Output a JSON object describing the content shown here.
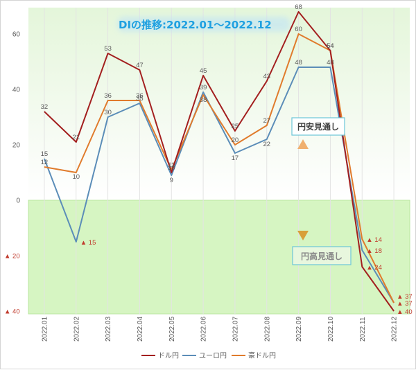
{
  "chart_data": {
    "type": "line",
    "title": "DIの推移:2022.01～2022.12",
    "categories": [
      "2022.01",
      "2022.02",
      "2022.03",
      "2022.04",
      "2022.05",
      "2022.06",
      "2022.07",
      "2022.08",
      "2022.09",
      "2022.10",
      "2022.11",
      "2022.12"
    ],
    "ylim": [
      -40,
      70
    ],
    "yticks": [
      {
        "value": 60,
        "label": "60"
      },
      {
        "value": 40,
        "label": "40"
      },
      {
        "value": 20,
        "label": "20"
      },
      {
        "value": 0,
        "label": "0"
      },
      {
        "value": -20,
        "label": "▲ 20"
      },
      {
        "value": -40,
        "label": "▲ 40"
      }
    ],
    "series": [
      {
        "name": "ドル円",
        "color": "#a31f1f",
        "values": [
          32,
          21,
          53,
          47,
          10,
          45,
          25,
          43,
          68,
          54,
          -24,
          -40
        ],
        "labels": [
          "32",
          "21",
          "53",
          "47",
          "10",
          "45",
          "25",
          "43",
          "68",
          "54",
          "▲ 24",
          "▲ 40"
        ]
      },
      {
        "name": "ユーロ円",
        "color": "#5b8db8",
        "values": [
          15,
          -15,
          30,
          35,
          9,
          39,
          17,
          22,
          48,
          48,
          -18,
          -37
        ],
        "labels": [
          "15",
          "▲ 15",
          "30",
          "35",
          "9",
          "39",
          "17",
          "22",
          "48",
          "48",
          "▲ 18",
          "▲ 37"
        ]
      },
      {
        "name": "豪ドル円",
        "color": "#e07b2c",
        "values": [
          12,
          10,
          36,
          36,
          11,
          38,
          20,
          27,
          60,
          54,
          -14,
          -37
        ],
        "labels": [
          "12",
          "10",
          "36",
          "36",
          "11",
          "38",
          "20",
          "27",
          "60",
          "54",
          "▲ 14",
          "▲ 37"
        ]
      }
    ],
    "annotations": {
      "up": "円安見通し",
      "down": "円高見通し"
    },
    "legend_position": "bottom"
  },
  "colors": {
    "negative_zone": "#d6f5c2",
    "positive_zone_top": "#e7f6df",
    "title_glow": "#bfe3f6",
    "annotation_border": "#6cc6d8",
    "arrow": "#e9a14e",
    "label_negative": "#c0392b"
  }
}
